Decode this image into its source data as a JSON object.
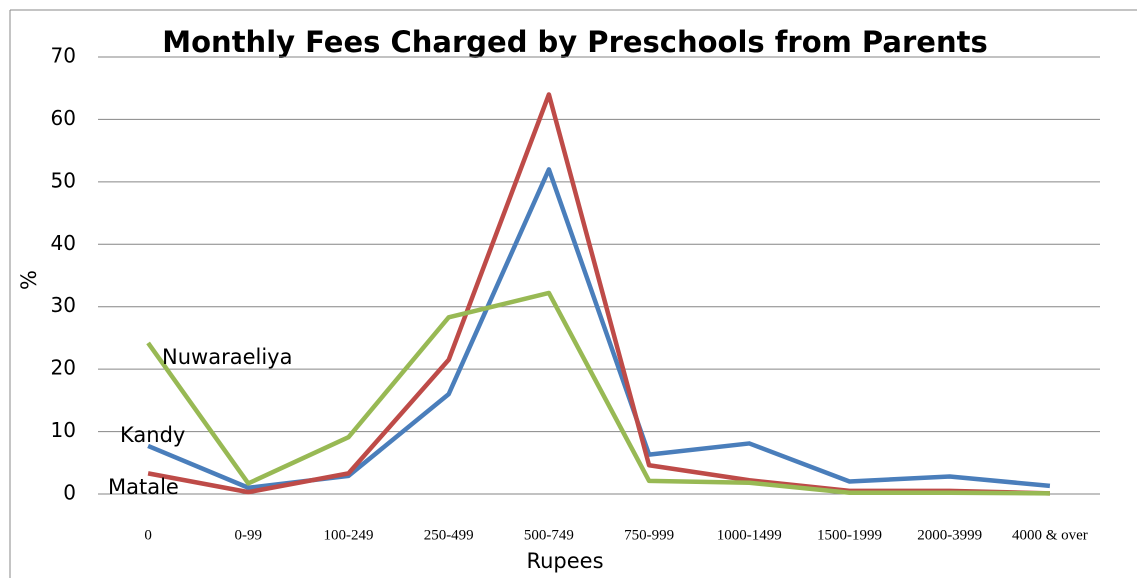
{
  "chart_data": {
    "type": "line",
    "title": "Monthly Fees Charged by Preschools from Parents",
    "x_label": "Rupees",
    "y_label": "%",
    "categories": [
      "0",
      "0-99",
      "100-249",
      "250-499",
      "500-749",
      "750-999",
      "1000-1499",
      "1500-1999",
      "2000-3999",
      "4000 & over"
    ],
    "series": [
      {
        "name": "Kandy",
        "color": "#4a7ebb",
        "values": [
          7.7,
          1.0,
          2.9,
          16,
          52,
          6.3,
          8.1,
          2.0,
          2.8,
          1.3
        ]
      },
      {
        "name": "Matale",
        "color": "#be4b48",
        "values": [
          3.3,
          0.3,
          3.3,
          21.5,
          64,
          4.6,
          2.2,
          0.5,
          0.5,
          0.1
        ]
      },
      {
        "name": "Nuwaraeliya",
        "color": "#98b954",
        "values": [
          24.2,
          1.7,
          9.1,
          28.3,
          32.2,
          2.1,
          1.8,
          0.2,
          0.2,
          0.1
        ]
      }
    ],
    "ylim": [
      0,
      70
    ],
    "yticks": [
      0,
      10,
      20,
      30,
      40,
      50,
      60,
      70
    ],
    "grid": true
  }
}
